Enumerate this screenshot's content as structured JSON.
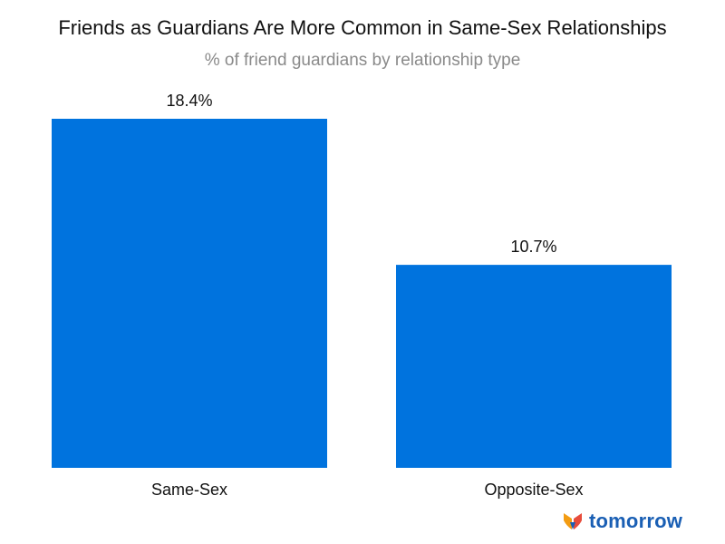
{
  "chart_data": {
    "type": "bar",
    "title": "Friends as Guardians Are More Common in Same-Sex Relationships",
    "subtitle": "% of friend guardians by relationship type",
    "categories": [
      "Same-Sex",
      "Opposite-Sex"
    ],
    "values": [
      18.4,
      10.7
    ],
    "value_labels": [
      "18.4%",
      "10.7%"
    ],
    "ylim": [
      0,
      18.4
    ],
    "grid": false,
    "bar_color": "#0073de"
  },
  "brand": {
    "name": "tomorrow",
    "colors": [
      "#f39c12",
      "#e74c3c",
      "#1a5fb4"
    ]
  }
}
